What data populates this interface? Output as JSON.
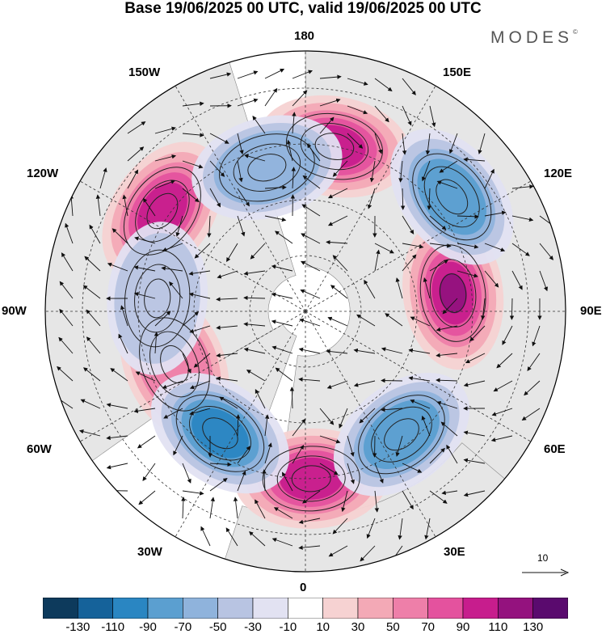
{
  "title": "Base 19/06/2025 00 UTC, valid 19/06/2025 00 UTC",
  "brand": {
    "name": "MODES",
    "mark": "©"
  },
  "longitude_labels": {
    "top": "180",
    "top_left": "150W",
    "top_right": "150E",
    "upper_left": "120W",
    "upper_right": "120E",
    "left": "90W",
    "right": "90E",
    "lower_left": "60W",
    "lower_right": "60E",
    "bottom_left": "30W",
    "bottom_right": "30E",
    "bottom": "0"
  },
  "reference_vector": {
    "label": "10"
  },
  "colorbar": {
    "colors": [
      "#0d3a5c",
      "#15629a",
      "#2a86c2",
      "#5b9fd0",
      "#8fb3dc",
      "#b8c4e2",
      "#e2e2f2",
      "#ffffff",
      "#f6d2d2",
      "#f3a9b6",
      "#ee7fa9",
      "#e4529e",
      "#c71d8d",
      "#94127e",
      "#5a0a6e"
    ],
    "tick_labels": [
      "-130",
      "-110",
      "-90",
      "-70",
      "-50",
      "-30",
      "-10",
      "10",
      "30",
      "50",
      "70",
      "90",
      "110",
      "130"
    ],
    "tick_colors": {
      "-130": "#0d3a5c",
      "-110": "#15629a",
      "-90": "#2a86c2",
      "-70": "#5b9fd0",
      "-50": "#8fb3dc",
      "-30": "#b8c4e2",
      "-10": "#e2e2f2"
    },
    "positive_colors": {
      "10": "#f6d2d2",
      "30": "#f3a9b6",
      "50": "#ee7fa9",
      "70": "#e4529e",
      "90": "#c71d8d",
      "110": "#94127e",
      "130": "#5a0a6e"
    }
  },
  "anomaly_centers": [
    {
      "id": "pos-180",
      "lon": 170,
      "lat": 45,
      "value": 90
    },
    {
      "id": "pos-120w",
      "lon": -125,
      "lat": 43,
      "value": 90
    },
    {
      "id": "pos-90e",
      "lon": 97,
      "lat": 50,
      "value": 110
    },
    {
      "id": "pos-0",
      "lon": 2,
      "lat": 45,
      "value": 90
    },
    {
      "id": "pos-70w",
      "lon": -68,
      "lat": 52,
      "value": 50
    },
    {
      "id": "neg-150w",
      "lon": -165,
      "lat": 50,
      "value": -50
    },
    {
      "id": "neg-130e",
      "lon": 128,
      "lat": 40,
      "value": -70
    },
    {
      "id": "neg-40e",
      "lon": 38,
      "lat": 48,
      "value": -70
    },
    {
      "id": "neg-40w",
      "lon": -35,
      "lat": 50,
      "value": -90
    },
    {
      "id": "neg-90w",
      "lon": -95,
      "lat": 50,
      "value": -30
    }
  ]
}
